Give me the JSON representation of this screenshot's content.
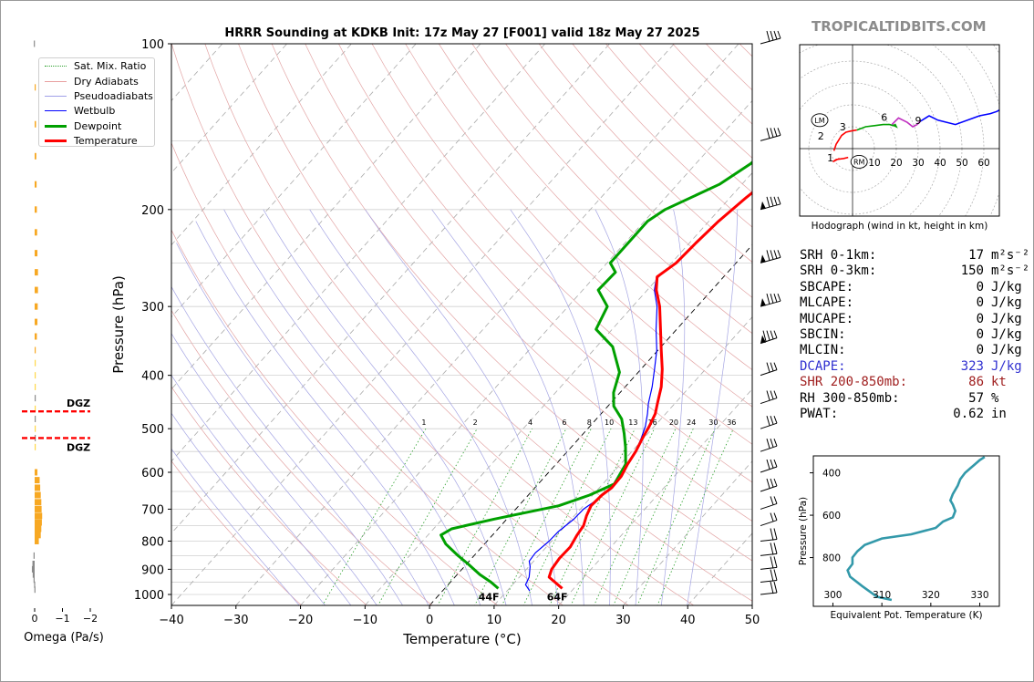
{
  "brand": "TROPICALTIDBITS.COM",
  "title": "HRRR Sounding at KDKB Init: 17z May 27 [F001] valid 18z May 27 2025",
  "chart_data": [
    {
      "type": "line",
      "name": "skewt",
      "title": "HRRR Sounding at KDKB Init: 17z May 27 [F001] valid 18z May 27 2025",
      "xlabel": "Temperature (°C)",
      "ylabel": "Pressure (hPa)",
      "xlim": [
        -40,
        50
      ],
      "ylim": [
        1050,
        100
      ],
      "yscale": "log",
      "xticks": [
        -40,
        -30,
        -20,
        -10,
        0,
        10,
        20,
        30,
        40,
        50
      ],
      "xtick_labels": [
        "−40",
        "−30",
        "−20",
        "−10",
        "0",
        "10",
        "20",
        "30",
        "40",
        "50"
      ],
      "yticks": [
        100,
        200,
        300,
        400,
        500,
        600,
        700,
        800,
        900,
        1000
      ],
      "grid": true,
      "legend_position": "upper-left",
      "legend": [
        {
          "label": "Sat. Mix. Ratio",
          "color": "#2ca02c",
          "style": "dotted"
        },
        {
          "label": "Dry Adiabats",
          "color": "#e8a0a0",
          "style": "solid"
        },
        {
          "label": "Pseudoadiabats",
          "color": "#a0a0e8",
          "style": "solid"
        },
        {
          "label": "Wetbulb",
          "color": "#0000ff",
          "style": "solid"
        },
        {
          "label": "Dewpoint",
          "color": "#00a000",
          "style": "solid"
        },
        {
          "label": "Temperature",
          "color": "#ff0000",
          "style": "solid"
        }
      ],
      "mixing_ratio_labels": [
        "1",
        "2",
        "4",
        "6",
        "8",
        "10",
        "13",
        "16",
        "20",
        "24",
        "30",
        "36"
      ],
      "series": [
        {
          "name": "Temperature",
          "color": "#ff0000",
          "width": 3,
          "points": [
            [
              18.2,
              975
            ],
            [
              14.6,
              930
            ],
            [
              13.9,
              900
            ],
            [
              13.6,
              860
            ],
            [
              13.7,
              820
            ],
            [
              13.1,
              780
            ],
            [
              12.8,
              750
            ],
            [
              11.9,
              720
            ],
            [
              11.2,
              690
            ],
            [
              11.4,
              660
            ],
            [
              11.9,
              640
            ],
            [
              11.8,
              610
            ],
            [
              11.1,
              580
            ],
            [
              10.6,
              550
            ],
            [
              9.8,
              520
            ],
            [
              9.2,
              495
            ],
            [
              8.4,
              470
            ],
            [
              7.3,
              450
            ],
            [
              5.6,
              420
            ],
            [
              3.3,
              390
            ],
            [
              0.5,
              360
            ],
            [
              -2.5,
              330
            ],
            [
              -5.8,
              300
            ],
            [
              -8.6,
              280
            ],
            [
              -10.3,
              265
            ],
            [
              -9.3,
              250
            ],
            [
              -9.0,
              230
            ],
            [
              -8.5,
              210
            ],
            [
              -7.5,
              190
            ],
            [
              -6.0,
              170
            ],
            [
              -2.2,
              150
            ],
            [
              -4.5,
              125
            ],
            [
              -3.0,
              100
            ]
          ]
        },
        {
          "name": "Dewpoint",
          "color": "#00a000",
          "width": 3,
          "points": [
            [
              8.3,
              975
            ],
            [
              6.3,
              950
            ],
            [
              3.5,
              920
            ],
            [
              0.2,
              880
            ],
            [
              -2.5,
              850
            ],
            [
              -6.0,
              810
            ],
            [
              -8.0,
              780
            ],
            [
              -7.2,
              760
            ],
            [
              -2.0,
              730
            ],
            [
              6.2,
              690
            ],
            [
              9.5,
              660
            ],
            [
              11.8,
              630
            ],
            [
              10.8,
              580
            ],
            [
              8.4,
              540
            ],
            [
              6.3,
              510
            ],
            [
              3.9,
              480
            ],
            [
              0.9,
              455
            ],
            [
              -1.0,
              430
            ],
            [
              -2.9,
              395
            ],
            [
              -7.5,
              355
            ],
            [
              -12.5,
              330
            ],
            [
              -13.9,
              300
            ],
            [
              -17.6,
              280
            ],
            [
              -17.4,
              260
            ],
            [
              -19.5,
              250
            ],
            [
              -19.5,
              230
            ],
            [
              -19.5,
              210
            ],
            [
              -18.4,
              200
            ],
            [
              -13.5,
              180
            ],
            [
              -11.5,
              165
            ],
            [
              -10.8,
              150
            ],
            [
              -12.8,
              125
            ],
            [
              -4.0,
              100
            ]
          ]
        },
        {
          "name": "Wetbulb",
          "color": "#0000ff",
          "width": 1.2,
          "points": [
            [
              13.5,
              985
            ],
            [
              12.0,
              960
            ],
            [
              11.5,
              930
            ],
            [
              10.2,
              890
            ],
            [
              9.3,
              870
            ],
            [
              9.1,
              840
            ],
            [
              9.6,
              800
            ],
            [
              9.7,
              770
            ],
            [
              10.4,
              730
            ],
            [
              10.5,
              700
            ],
            [
              11.4,
              670
            ],
            [
              11.9,
              640
            ],
            [
              11.8,
              610
            ],
            [
              11.1,
              580
            ],
            [
              10.6,
              550
            ],
            [
              9.6,
              520
            ],
            [
              8.6,
              495
            ],
            [
              7.2,
              470
            ],
            [
              5.9,
              450
            ],
            [
              4.2,
              420
            ],
            [
              2.1,
              390
            ],
            [
              -0.2,
              360
            ],
            [
              -3.2,
              330
            ],
            [
              -6.2,
              300
            ],
            [
              -8.9,
              280
            ],
            [
              -10.4,
              265
            ],
            [
              -9.3,
              250
            ],
            [
              -9.0,
              230
            ],
            [
              -8.5,
              210
            ],
            [
              -7.5,
              190
            ],
            [
              -6.0,
              170
            ],
            [
              -2.4,
              150
            ],
            [
              -4.4,
              125
            ],
            [
              -3.0,
              100
            ]
          ]
        }
      ],
      "surface_labels": [
        {
          "text": "44F",
          "color": "#00a000",
          "x": 8.0,
          "p": 1010
        },
        {
          "text": "64F",
          "color": "#ff0000",
          "x": 18.6,
          "p": 1010
        }
      ]
    },
    {
      "type": "bar",
      "name": "omega",
      "xlabel": "Omega (Pa/s)",
      "xticks": [
        0,
        -1,
        -2
      ],
      "xtick_labels": [
        "0",
        "−1",
        "−2"
      ],
      "xlim": [
        0.15,
        -2
      ],
      "dgz_label": "DGZ",
      "dgz_pressures": [
        465,
        520
      ],
      "bars": [
        [
          100,
          0.03
        ],
        [
          120,
          -0.03
        ],
        [
          140,
          -0.05
        ],
        [
          160,
          -0.06
        ],
        [
          180,
          -0.07
        ],
        [
          200,
          -0.08
        ],
        [
          220,
          -0.09
        ],
        [
          240,
          -0.1
        ],
        [
          260,
          -0.12
        ],
        [
          280,
          -0.12
        ],
        [
          300,
          -0.11
        ],
        [
          320,
          -0.1
        ],
        [
          340,
          -0.08
        ],
        [
          360,
          -0.03
        ],
        [
          380,
          -0.02
        ],
        [
          400,
          -0.01
        ],
        [
          420,
          -0.01
        ],
        [
          440,
          0
        ],
        [
          460,
          -0.01
        ],
        [
          480,
          0
        ],
        [
          500,
          -0.01
        ],
        [
          520,
          0
        ],
        [
          540,
          -0.02
        ],
        [
          600,
          -0.1
        ],
        [
          620,
          -0.18
        ],
        [
          640,
          -0.2
        ],
        [
          660,
          -0.22
        ],
        [
          680,
          -0.24
        ],
        [
          700,
          -0.25
        ],
        [
          720,
          -0.27
        ],
        [
          740,
          -0.26
        ],
        [
          760,
          -0.24
        ],
        [
          780,
          -0.22
        ],
        [
          800,
          -0.15
        ],
        [
          850,
          0.04
        ],
        [
          880,
          0.08
        ],
        [
          900,
          0.1
        ],
        [
          920,
          0.07
        ],
        [
          940,
          0.04
        ],
        [
          960,
          0.02
        ],
        [
          980,
          0.01
        ]
      ]
    },
    {
      "type": "line",
      "name": "hodograph",
      "title": "Hodograph (wind in kt, height in km)",
      "xticks": [
        10,
        20,
        30,
        40,
        50,
        60
      ],
      "x": [
        -9,
        50
      ],
      "y": [
        -15,
        48
      ],
      "height_labels": [
        "1",
        "2",
        "3",
        "6",
        "9"
      ],
      "storm_markers": [
        "LM",
        "RM"
      ],
      "series": [
        {
          "name": "0-1",
          "color": "#ff0000",
          "points": [
            [
              -6,
              -4.5
            ],
            [
              -8,
              -5.5
            ],
            [
              -9,
              -6
            ],
            [
              -7.5,
              -5
            ],
            [
              -4,
              -4.5
            ],
            [
              -2,
              -4
            ]
          ]
        },
        {
          "name": "1-3",
          "color": "#ff0000",
          "points": [
            [
              -8.5,
              -1
            ],
            [
              -7.5,
              2
            ],
            [
              -5,
              6
            ],
            [
              -3,
              7.5
            ],
            [
              -1,
              8
            ],
            [
              2,
              8.5
            ]
          ]
        },
        {
          "name": "3-6",
          "color": "#00a000",
          "points": [
            [
              2,
              8.5
            ],
            [
              6,
              10
            ],
            [
              10,
              10.5
            ],
            [
              14,
              11
            ],
            [
              17,
              11
            ],
            [
              18.5,
              10.5
            ],
            [
              19.5,
              11
            ],
            [
              20,
              10
            ],
            [
              18,
              11
            ]
          ]
        },
        {
          "name": "6-9",
          "color": "#c030c0",
          "points": [
            [
              18,
              11
            ],
            [
              21,
              14
            ],
            [
              25,
              12
            ],
            [
              27.5,
              10
            ],
            [
              29.5,
              11
            ],
            [
              31,
              12.5
            ]
          ]
        },
        {
          "name": "9-12",
          "color": "#0000ff",
          "points": [
            [
              31,
              12.5
            ],
            [
              35,
              15
            ],
            [
              39,
              13
            ],
            [
              47,
              11
            ],
            [
              58,
              15
            ],
            [
              63,
              16
            ],
            [
              66,
              17
            ],
            [
              71,
              20
            ],
            [
              67,
              25
            ]
          ]
        }
      ]
    },
    {
      "type": "line",
      "name": "theta-e",
      "xlabel": "Equivalent Pot. Temperature (K)",
      "ylabel": "Pressure (hPa)",
      "xticks": [
        300,
        310,
        320,
        330
      ],
      "yticks": [
        400,
        600,
        800
      ],
      "xlim": [
        296,
        334
      ],
      "ylim": [
        1030,
        320
      ],
      "color": "#3399aa",
      "points": [
        [
          312,
          1000
        ],
        [
          309,
          985
        ],
        [
          307.5,
          960
        ],
        [
          306,
          935
        ],
        [
          303.5,
          890
        ],
        [
          303,
          860
        ],
        [
          304,
          830
        ],
        [
          304,
          800
        ],
        [
          305,
          770
        ],
        [
          306.5,
          740
        ],
        [
          310,
          710
        ],
        [
          316,
          690
        ],
        [
          321,
          660
        ],
        [
          322.5,
          630
        ],
        [
          324.5,
          610
        ],
        [
          325,
          580
        ],
        [
          324.5,
          550
        ],
        [
          324,
          530
        ],
        [
          324.5,
          500
        ],
        [
          325.5,
          460
        ],
        [
          326,
          430
        ],
        [
          327,
          400
        ],
        [
          328,
          380
        ],
        [
          329,
          360
        ],
        [
          330,
          340
        ],
        [
          331,
          325
        ]
      ]
    }
  ],
  "wind_barb_pressures": [
    100,
    150,
    200,
    250,
    300,
    350,
    400,
    450,
    500,
    550,
    600,
    650,
    700,
    750,
    800,
    850,
    900,
    950,
    1000
  ],
  "indices": [
    {
      "name": "SRH 0-1km:",
      "value": "17",
      "unit": "m²s⁻²",
      "color": "#000000"
    },
    {
      "name": "SRH 0-3km:",
      "value": "150",
      "unit": "m²s⁻²",
      "color": "#000000"
    },
    {
      "name": "SBCAPE:",
      "value": "0",
      "unit": "J/kg",
      "color": "#000000"
    },
    {
      "name": "MLCAPE:",
      "value": "0",
      "unit": "J/kg",
      "color": "#000000"
    },
    {
      "name": "MUCAPE:",
      "value": "0",
      "unit": "J/kg",
      "color": "#000000"
    },
    {
      "name": "SBCIN:",
      "value": "0",
      "unit": "J/kg",
      "color": "#000000"
    },
    {
      "name": "MLCIN:",
      "value": "0",
      "unit": "J/kg",
      "color": "#000000"
    },
    {
      "name": "DCAPE:",
      "value": "323",
      "unit": "J/kg",
      "color": "#3030d0"
    },
    {
      "name": "SHR 200-850mb:",
      "value": "86",
      "unit": "kt",
      "color": "#a02020"
    },
    {
      "name": "RH 300-850mb:",
      "value": "57",
      "unit": "%",
      "color": "#000000"
    },
    {
      "name": "PWAT:",
      "value": "0.62",
      "unit": "in",
      "color": "#000000"
    }
  ]
}
